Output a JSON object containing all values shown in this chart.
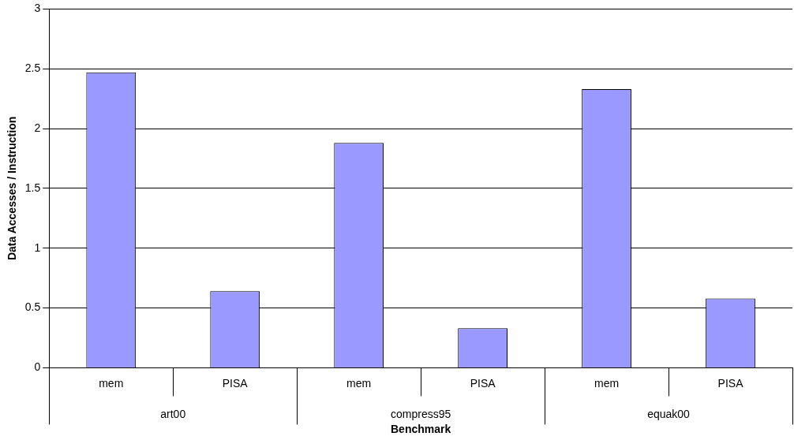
{
  "chart_data": {
    "type": "bar",
    "xlabel": "Benchmark",
    "ylabel": "Data Accesses / Instruction",
    "categories": [
      "mem",
      "PISA",
      "mem",
      "PISA",
      "mem",
      "PISA"
    ],
    "values": [
      2.47,
      0.64,
      1.88,
      0.33,
      2.33,
      0.58
    ],
    "color": "#9999ff",
    "annotations": [
      "art00",
      "compress95",
      "equak00"
    ],
    "ylim": [
      0,
      3
    ],
    "yticks": [
      0,
      0.5,
      1,
      1.5,
      2,
      2.5,
      3
    ],
    "grid": "y"
  }
}
